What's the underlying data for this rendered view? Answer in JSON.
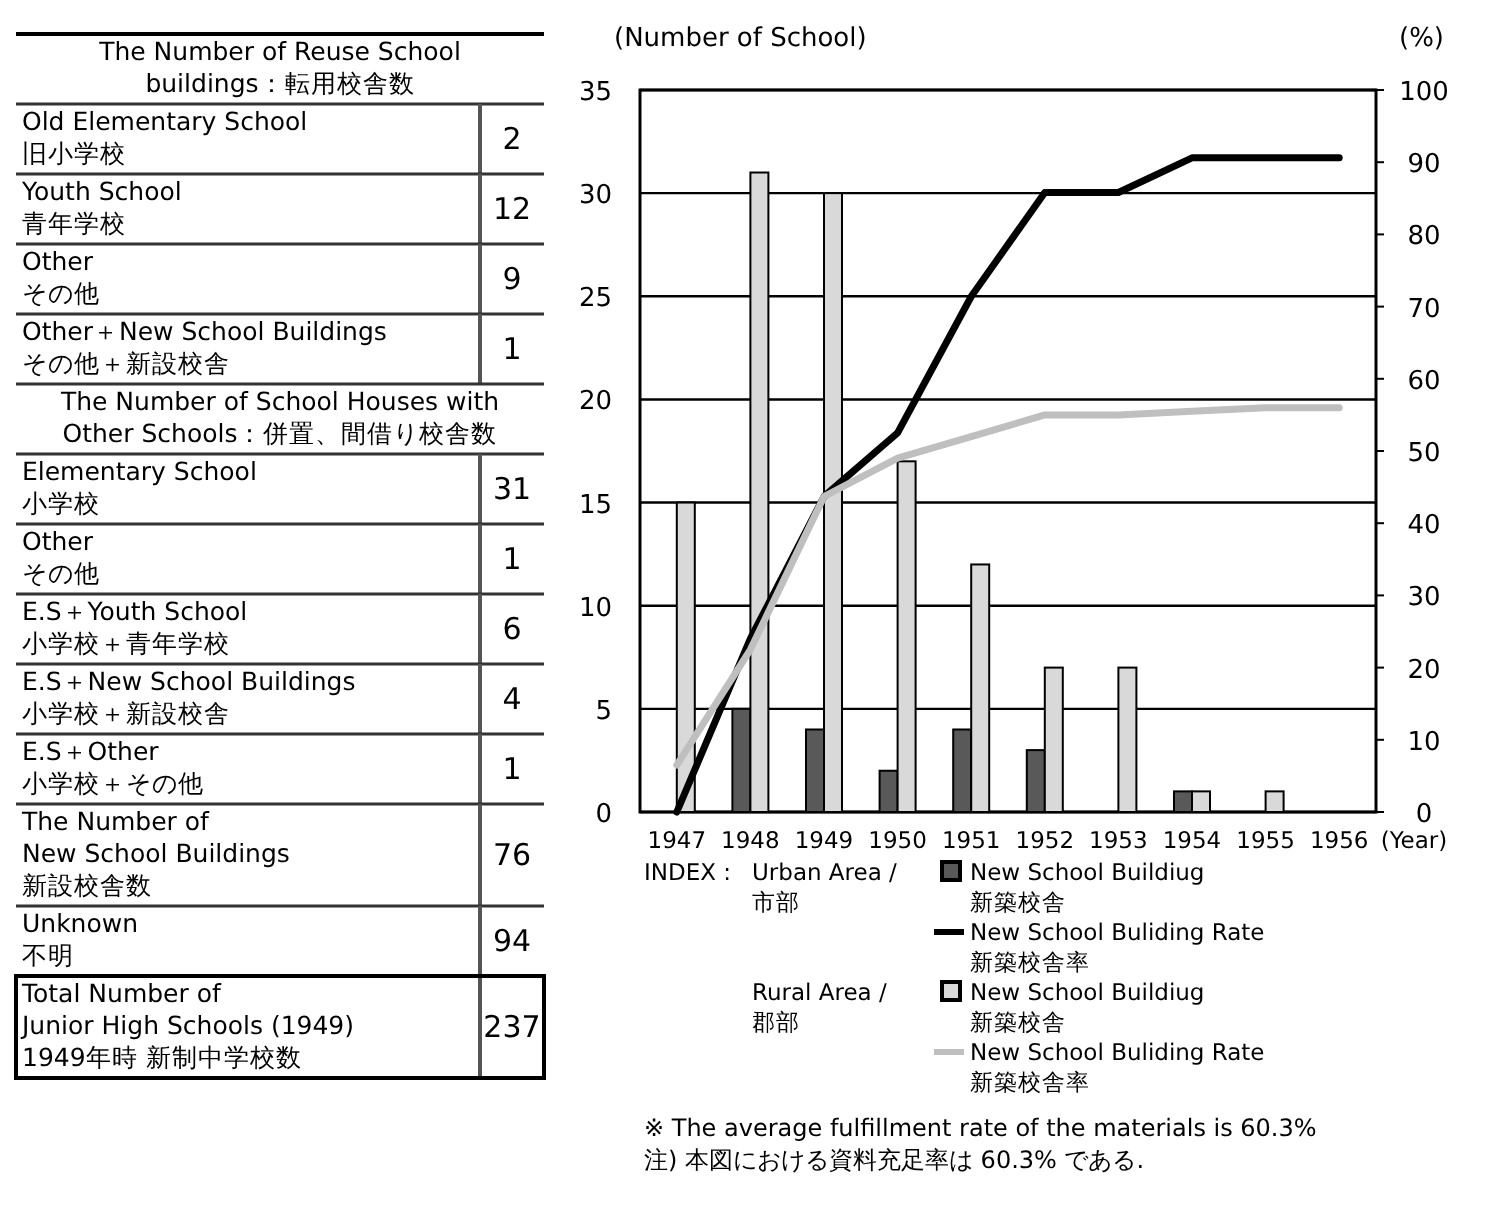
{
  "chart_data": [
    {
      "type": "other",
      "categories": [
        "The Number of Reuse School\nbuildings：転用校舎数",
        "Old Elementary School\n旧小学校",
        "Youth School\n青年学校",
        "Other\nその他",
        "Other＋New School Buildings\nその他＋新設校舎",
        "The Number of School Houses with\nOther Schools：併置、間借り校舎数",
        "Elementary School\n小学校",
        "Other\nその他",
        "E.S＋Youth School\n小学校＋青年学校",
        "E.S＋New School Buildings\n小学校＋新設校舎",
        "E.S＋Other\n小学校＋その他",
        "The Number of\nNew School Buildings\n新設校舎数",
        "Unknown\n不明",
        "Total Number of\nJunior High Schools (1949)\n1949年時 新制中学校数"
      ],
      "values": [
        null,
        2,
        12,
        9,
        1,
        null,
        31,
        1,
        6,
        4,
        1,
        76,
        94,
        237
      ],
      "data_labels": true
    },
    {
      "type": "bar",
      "categories": [
        "1947",
        "1948",
        "1949",
        "1950",
        "1951",
        "1952",
        "1953",
        "1954",
        "1955",
        "1956"
      ],
      "xlabel": "(Year)",
      "ylabel": "(Number of School)",
      "y2label": "(%)",
      "legend_title": "INDEX :",
      "ylim": [
        0,
        35
      ],
      "yticks": [
        0,
        5,
        10,
        15,
        20,
        25,
        30,
        35
      ],
      "y2lim": [
        0,
        100
      ],
      "y2ticks": [
        0,
        10,
        20,
        30,
        40,
        50,
        60,
        70,
        80,
        90,
        100
      ],
      "grid": "y",
      "legend": "bottom",
      "series": [
        {
          "name": "New School Buildiug\n新築校舎",
          "type": "bar",
          "color": "#595959",
          "values": [
            0,
            5,
            4,
            2,
            4,
            3,
            0,
            1,
            0,
            0
          ]
        },
        {
          "name": "New School Buliding Rate\n新築校舎率",
          "type": "line",
          "axis": "y2",
          "color": "#000000",
          "values": [
            0,
            24,
            43.7,
            52.5,
            71.4,
            85.8,
            85.8,
            90.6,
            90.6,
            90.6
          ]
        },
        {
          "name": "New School Buildiug\n新築校舎",
          "type": "bar",
          "color": "#d9d9d9",
          "values": [
            15,
            31,
            30,
            17,
            12,
            7,
            7,
            1,
            1,
            0
          ]
        },
        {
          "name": "New School Buliding Rate\n新築校舎率",
          "type": "line",
          "axis": "y2",
          "color": "#bfbfbf",
          "values": [
            6.5,
            22.5,
            43.7,
            49,
            52,
            55,
            55,
            55.5,
            56,
            56
          ]
        }
      ],
      "annotations": [
        "Urban Area /\n市部",
        "Rural Area  /\n郡部",
        "※ The average fulfillment rate of the materials is 60.3%",
        "注) 本図における資料充足率は 60.3% である."
      ]
    }
  ]
}
